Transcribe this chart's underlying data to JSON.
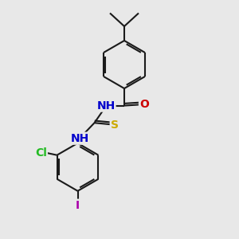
{
  "bg_color": "#e8e8e8",
  "bond_color": "#1a1a1a",
  "bond_width": 1.5,
  "atom_colors": {
    "N": "#0000cc",
    "O": "#cc0000",
    "S": "#ccaa00",
    "Cl": "#22bb22",
    "I": "#aa00aa",
    "H": "#4a9a9a",
    "C": "#1a1a1a"
  },
  "font_size": 10,
  "fig_width": 3.0,
  "fig_height": 3.0,
  "dpi": 100
}
